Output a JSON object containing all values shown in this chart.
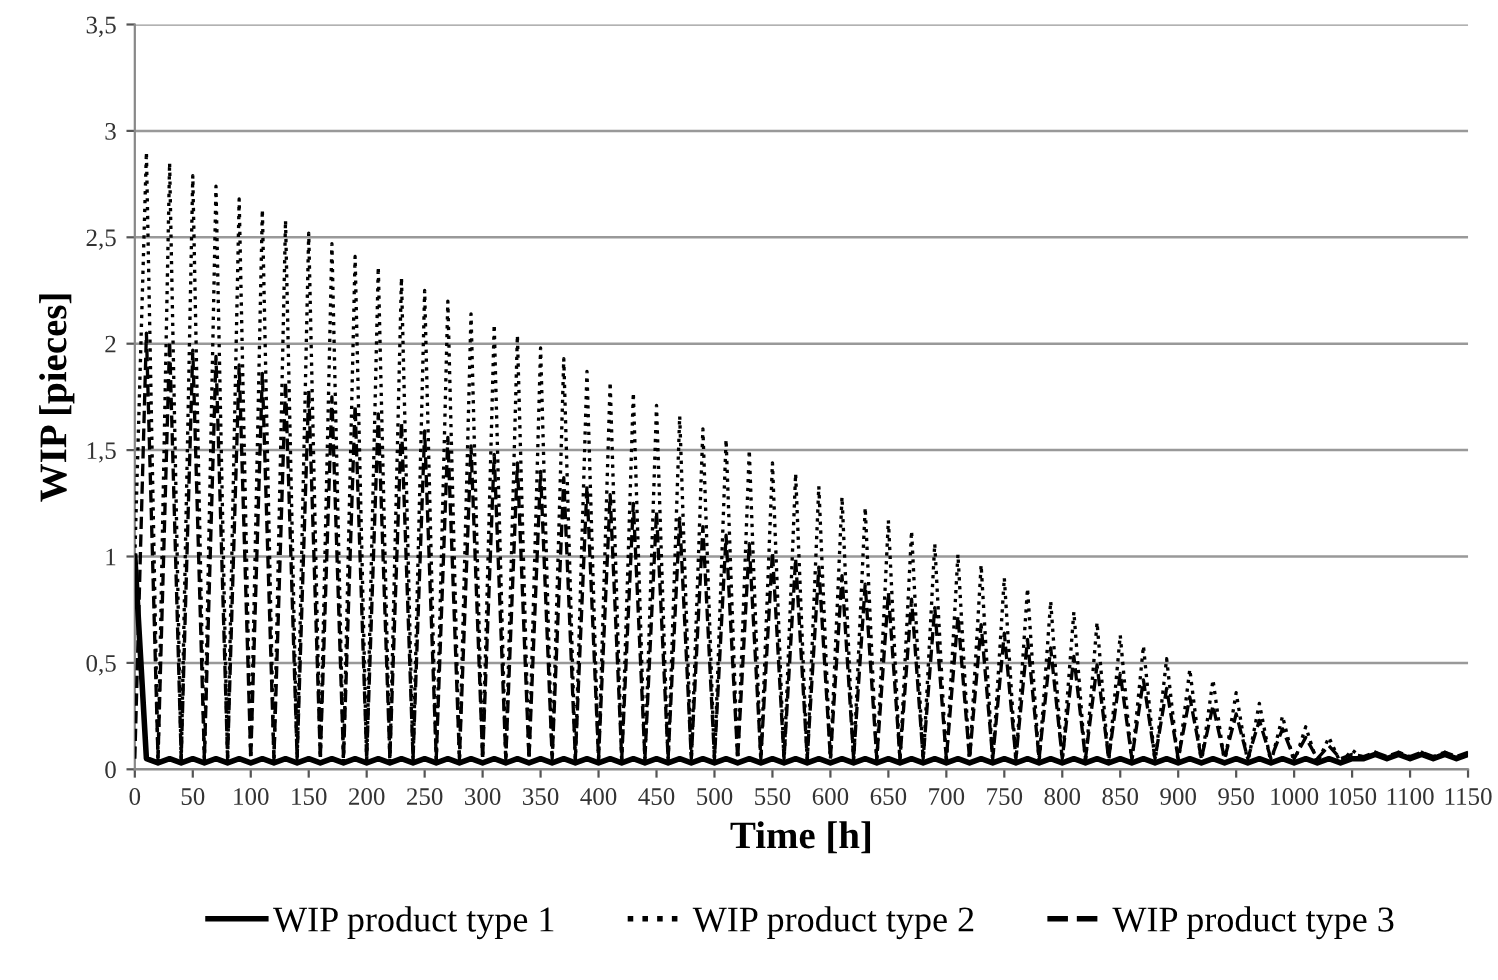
{
  "chart_data": {
    "type": "line",
    "xlabel": "Time [h]",
    "ylabel": "WIP [pieces]",
    "x": [
      0,
      10,
      20,
      30,
      40,
      50,
      60,
      70,
      80,
      90,
      100,
      110,
      120,
      130,
      140,
      150,
      160,
      170,
      180,
      190,
      200,
      210,
      220,
      230,
      240,
      250,
      260,
      270,
      280,
      290,
      300,
      310,
      320,
      330,
      340,
      350,
      360,
      370,
      380,
      390,
      400,
      410,
      420,
      430,
      440,
      450,
      460,
      470,
      480,
      490,
      500,
      510,
      520,
      530,
      540,
      550,
      560,
      570,
      580,
      590,
      600,
      610,
      620,
      630,
      640,
      650,
      660,
      670,
      680,
      690,
      700,
      710,
      720,
      730,
      740,
      750,
      760,
      770,
      780,
      790,
      800,
      810,
      820,
      830,
      840,
      850,
      860,
      870,
      880,
      890,
      900,
      910,
      920,
      930,
      940,
      950,
      960,
      970,
      980,
      990,
      1000,
      1010,
      1020,
      1030,
      1040,
      1050,
      1060,
      1070,
      1080,
      1090,
      1100,
      1110,
      1120,
      1130,
      1140,
      1150
    ],
    "series": [
      {
        "name": "WIP product type 1",
        "color": "#000000",
        "line_style": "solid",
        "values": [
          1.0,
          0.05,
          0.03,
          0.05,
          0.03,
          0.05,
          0.03,
          0.05,
          0.03,
          0.05,
          0.03,
          0.05,
          0.03,
          0.05,
          0.03,
          0.05,
          0.03,
          0.05,
          0.03,
          0.05,
          0.03,
          0.05,
          0.03,
          0.05,
          0.03,
          0.05,
          0.03,
          0.05,
          0.03,
          0.05,
          0.03,
          0.05,
          0.03,
          0.05,
          0.03,
          0.05,
          0.03,
          0.05,
          0.03,
          0.05,
          0.03,
          0.05,
          0.03,
          0.05,
          0.03,
          0.05,
          0.03,
          0.05,
          0.03,
          0.05,
          0.03,
          0.05,
          0.03,
          0.05,
          0.03,
          0.05,
          0.03,
          0.05,
          0.03,
          0.05,
          0.03,
          0.05,
          0.03,
          0.05,
          0.03,
          0.05,
          0.03,
          0.05,
          0.03,
          0.05,
          0.03,
          0.05,
          0.03,
          0.05,
          0.03,
          0.05,
          0.03,
          0.05,
          0.03,
          0.05,
          0.03,
          0.05,
          0.03,
          0.05,
          0.03,
          0.05,
          0.03,
          0.05,
          0.03,
          0.05,
          0.03,
          0.05,
          0.03,
          0.05,
          0.03,
          0.05,
          0.03,
          0.05,
          0.03,
          0.05,
          0.03,
          0.05,
          0.03,
          0.05,
          0.03,
          0.05,
          0.05,
          0.07,
          0.05,
          0.07,
          0.05,
          0.07,
          0.05,
          0.07,
          0.05,
          0.07
        ]
      },
      {
        "name": "WIP product type 2",
        "color": "#000000",
        "line_style": "dotted",
        "values": [
          1.0,
          2.9,
          0.03,
          2.85,
          0.03,
          2.79,
          0.03,
          2.74,
          0.03,
          2.68,
          0.03,
          2.63,
          0.03,
          2.58,
          0.03,
          2.52,
          0.03,
          2.47,
          0.03,
          2.41,
          0.03,
          2.36,
          0.03,
          2.31,
          0.03,
          2.25,
          0.03,
          2.2,
          0.03,
          2.14,
          0.03,
          2.09,
          0.03,
          2.04,
          0.03,
          1.98,
          0.03,
          1.93,
          0.03,
          1.87,
          0.03,
          1.82,
          0.03,
          1.77,
          0.03,
          1.71,
          0.03,
          1.66,
          0.03,
          1.6,
          0.03,
          1.55,
          0.03,
          1.5,
          0.03,
          1.44,
          0.03,
          1.39,
          0.03,
          1.33,
          0.03,
          1.28,
          0.03,
          1.23,
          0.03,
          1.17,
          0.03,
          1.12,
          0.03,
          1.06,
          0.03,
          1.01,
          0.03,
          0.96,
          0.03,
          0.9,
          0.03,
          0.85,
          0.03,
          0.79,
          0.03,
          0.74,
          0.03,
          0.69,
          0.03,
          0.63,
          0.03,
          0.58,
          0.03,
          0.52,
          0.03,
          0.47,
          0.03,
          0.42,
          0.03,
          0.36,
          0.03,
          0.31,
          0.03,
          0.25,
          0.03,
          0.2,
          0.03,
          0.15,
          0.03,
          0.09,
          0.05,
          0.08,
          0.05,
          0.08,
          0.05,
          0.08,
          0.05,
          0.08,
          0.05,
          0.08
        ]
      },
      {
        "name": "WIP product type 3",
        "color": "#000000",
        "line_style": "dashed",
        "values": [
          0.05,
          2.05,
          0.05,
          2.01,
          0.05,
          1.97,
          0.05,
          1.94,
          0.05,
          1.9,
          0.05,
          1.86,
          0.05,
          1.82,
          0.05,
          1.78,
          0.05,
          1.75,
          0.05,
          1.71,
          0.05,
          1.67,
          0.05,
          1.63,
          0.05,
          1.59,
          0.05,
          1.56,
          0.05,
          1.52,
          0.05,
          1.48,
          0.05,
          1.44,
          0.05,
          1.4,
          0.05,
          1.37,
          0.05,
          1.33,
          0.05,
          1.29,
          0.05,
          1.25,
          0.05,
          1.21,
          0.05,
          1.18,
          0.05,
          1.14,
          0.05,
          1.1,
          0.05,
          1.06,
          0.05,
          1.02,
          0.05,
          0.99,
          0.05,
          0.95,
          0.05,
          0.91,
          0.05,
          0.87,
          0.05,
          0.83,
          0.05,
          0.8,
          0.05,
          0.76,
          0.05,
          0.72,
          0.05,
          0.68,
          0.05,
          0.64,
          0.05,
          0.61,
          0.05,
          0.57,
          0.05,
          0.53,
          0.05,
          0.49,
          0.05,
          0.45,
          0.05,
          0.42,
          0.05,
          0.38,
          0.05,
          0.34,
          0.05,
          0.3,
          0.05,
          0.26,
          0.05,
          0.23,
          0.05,
          0.19,
          0.05,
          0.15,
          0.05,
          0.11,
          0.05,
          0.07,
          0.06,
          0.08,
          0.06,
          0.08,
          0.06,
          0.08,
          0.06,
          0.08,
          0.06,
          0.08
        ]
      }
    ],
    "xlim": [
      0,
      1150
    ],
    "xticks": [
      0,
      50,
      100,
      150,
      200,
      250,
      300,
      350,
      400,
      450,
      500,
      550,
      600,
      650,
      700,
      750,
      800,
      850,
      900,
      950,
      1000,
      1050,
      1100,
      1150
    ],
    "ylim": [
      0,
      3.5
    ],
    "yticks": [
      0,
      {
        "value": 0.5,
        "label": "0,5"
      },
      1,
      {
        "value": 1.5,
        "label": "1,5"
      },
      2,
      {
        "value": 2.5,
        "label": "2,5"
      },
      3,
      {
        "value": 3.5,
        "label": "3,5"
      }
    ],
    "grid": "y",
    "legend": "bottom",
    "marker": "none"
  }
}
